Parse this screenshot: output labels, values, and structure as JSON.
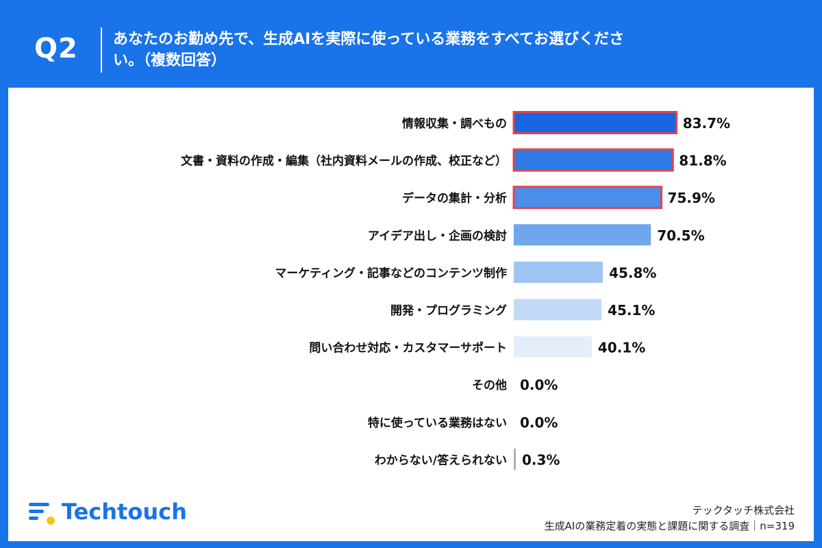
{
  "header": {
    "question_no": "Q2",
    "question_text": "あなたのお勤め先で、生成AIを実際に使っている業務をすべてお選びください。（複数回答）"
  },
  "chart_data": {
    "type": "bar",
    "orientation": "horizontal",
    "categories": [
      "情報収集・調べもの",
      "文書・資料の作成・編集（社内資料メールの作成、校正など）",
      "データの集計・分析",
      "アイデア出し・企画の検討",
      "マーケティング・記事などのコンテンツ制作",
      "開発・プログラミング",
      "問い合わせ対応・カスタマーサポート",
      "その他",
      "特に使っている業務はない",
      "わからない/答えられない"
    ],
    "values": [
      83.7,
      81.8,
      75.9,
      70.5,
      45.8,
      45.1,
      40.1,
      0.0,
      0.0,
      0.3
    ],
    "value_labels": [
      "83.7%",
      "81.8%",
      "75.9%",
      "70.5%",
      "45.8%",
      "45.1%",
      "40.1%",
      "0.0%",
      "0.0%",
      "0.3%"
    ],
    "bar_colors": [
      "#1a66e0",
      "#2f7ce6",
      "#4a8ee8",
      "#6fa6ec",
      "#9ec4f3",
      "#c3daf7",
      "#e4eefb",
      "#e4eefb",
      "#e4eefb",
      "#b0b0b0"
    ],
    "highlighted": [
      true,
      true,
      true,
      false,
      false,
      false,
      false,
      false,
      false,
      false
    ],
    "highlight_color": "#e0454f",
    "xlim": [
      0,
      100
    ]
  },
  "footer": {
    "company": "テックタッチ株式会社",
    "source": "生成AIの業務定着の実態と課題に関する調査｜n=319"
  },
  "logo": {
    "text": "Techtouch",
    "accent_dot": "#f5c518"
  }
}
